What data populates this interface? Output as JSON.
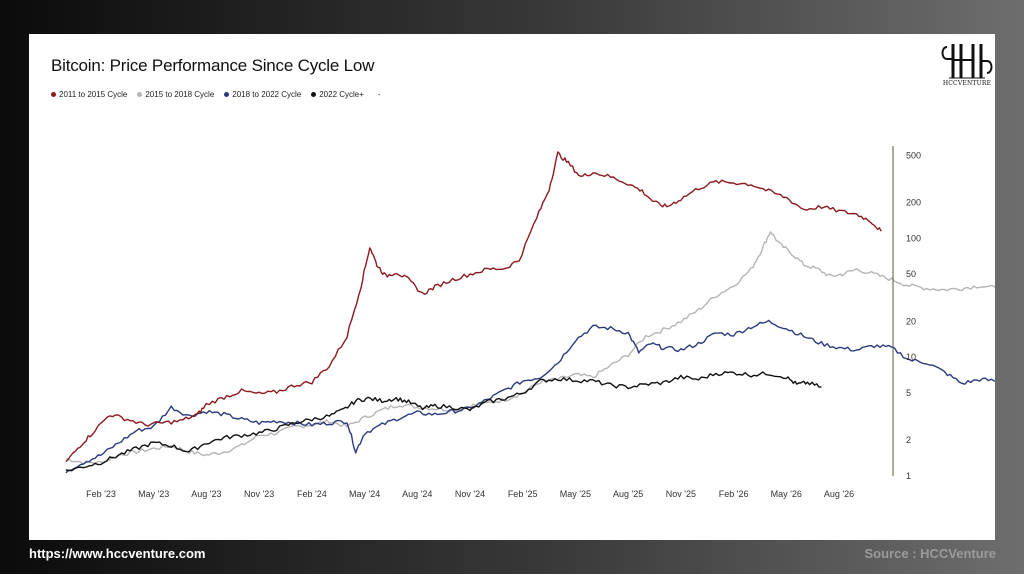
{
  "colors": {
    "c2011": "#8b1a1f",
    "c2015": "#b5b5b5",
    "c2018": "#2b3a7e",
    "c2022": "#111111"
  },
  "footer": {
    "url": "https://www.hccventure.com",
    "source": "Source : HCCVenture"
  },
  "logo": {
    "text": "HCCVENTURE"
  },
  "chart_data": {
    "type": "line",
    "title": "Bitcoin: Price Performance Since Cycle Low",
    "legend_placement": "top-left",
    "y_scale": "log",
    "ylim": [
      1,
      600
    ],
    "y_ticks": [
      1,
      2,
      5,
      10,
      20,
      50,
      100,
      200,
      500
    ],
    "x_ticks": [
      "Feb '23",
      "May '23",
      "Aug '23",
      "Nov '23",
      "Feb '24",
      "May '24",
      "Aug '24",
      "Nov '24",
      "Feb '25",
      "May '25",
      "Aug '25",
      "Nov '25",
      "Feb '26",
      "May '26",
      "Aug '26"
    ],
    "x_range_months": [
      -2.2,
      45.0
    ],
    "series": [
      {
        "name": "2011 to 2015 Cycle",
        "color_key": "c2011",
        "points": [
          [
            -2.0,
            1.3
          ],
          [
            -1.2,
            1.8
          ],
          [
            -0.5,
            2.3
          ],
          [
            0.5,
            3.3
          ],
          [
            1.5,
            3.0
          ],
          [
            2.5,
            2.7
          ],
          [
            3.5,
            2.8
          ],
          [
            4.5,
            2.9
          ],
          [
            5.5,
            3.3
          ],
          [
            6.0,
            4.0
          ],
          [
            7.0,
            4.6
          ],
          [
            8.0,
            5.2
          ],
          [
            9.0,
            4.9
          ],
          [
            10.0,
            5.1
          ],
          [
            11.0,
            5.8
          ],
          [
            12.0,
            6.2
          ],
          [
            13.0,
            8.5
          ],
          [
            14.0,
            15.0
          ],
          [
            14.8,
            40.0
          ],
          [
            15.3,
            85.0
          ],
          [
            15.7,
            60.0
          ],
          [
            16.2,
            48.0
          ],
          [
            16.8,
            52.0
          ],
          [
            17.5,
            45.0
          ],
          [
            18.3,
            34.0
          ],
          [
            19.0,
            39.0
          ],
          [
            20.0,
            45.0
          ],
          [
            21.0,
            50.0
          ],
          [
            22.0,
            55.0
          ],
          [
            23.0,
            56.0
          ],
          [
            23.8,
            66.0
          ],
          [
            24.8,
            150.0
          ],
          [
            25.5,
            260.0
          ],
          [
            26.0,
            520.0
          ],
          [
            26.6,
            430.0
          ],
          [
            27.3,
            330.0
          ],
          [
            28.0,
            360.0
          ],
          [
            29.0,
            330.0
          ],
          [
            30.0,
            290.0
          ],
          [
            30.8,
            250.0
          ],
          [
            31.5,
            200.0
          ],
          [
            32.2,
            185.0
          ],
          [
            33.0,
            215.0
          ],
          [
            34.0,
            265.0
          ],
          [
            35.0,
            300.0
          ],
          [
            36.0,
            295.0
          ],
          [
            37.0,
            285.0
          ],
          [
            38.0,
            250.0
          ],
          [
            39.0,
            220.0
          ],
          [
            40.0,
            175.0
          ],
          [
            41.0,
            185.0
          ],
          [
            42.0,
            170.0
          ],
          [
            43.0,
            160.0
          ],
          [
            43.8,
            140.0
          ],
          [
            44.4,
            115.0
          ]
        ]
      },
      {
        "name": "2015 to 2018 Cycle",
        "color_key": "c2015",
        "points": [
          [
            -2.0,
            1.4
          ],
          [
            -1.0,
            1.3
          ],
          [
            0.0,
            1.3
          ],
          [
            1.0,
            1.5
          ],
          [
            2.0,
            1.6
          ],
          [
            3.0,
            1.7
          ],
          [
            4.0,
            1.8
          ],
          [
            5.0,
            1.6
          ],
          [
            6.0,
            1.5
          ],
          [
            7.0,
            1.6
          ],
          [
            8.0,
            1.8
          ],
          [
            9.0,
            2.2
          ],
          [
            10.0,
            2.3
          ],
          [
            11.0,
            2.6
          ],
          [
            12.0,
            2.7
          ],
          [
            13.0,
            2.9
          ],
          [
            14.0,
            2.6
          ],
          [
            15.0,
            3.1
          ],
          [
            16.0,
            3.6
          ],
          [
            17.0,
            4.0
          ],
          [
            18.0,
            3.8
          ],
          [
            19.0,
            3.7
          ],
          [
            20.0,
            3.6
          ],
          [
            21.0,
            3.9
          ],
          [
            22.0,
            4.1
          ],
          [
            23.0,
            4.4
          ],
          [
            24.0,
            5.0
          ],
          [
            25.0,
            6.2
          ],
          [
            26.0,
            6.5
          ],
          [
            27.0,
            7.1
          ],
          [
            28.0,
            6.8
          ],
          [
            29.0,
            8.5
          ],
          [
            30.0,
            10.5
          ],
          [
            31.0,
            15.0
          ],
          [
            32.0,
            17.0
          ],
          [
            33.0,
            20.0
          ],
          [
            34.0,
            25.0
          ],
          [
            35.0,
            33.0
          ],
          [
            36.0,
            40.0
          ],
          [
            37.0,
            55.0
          ],
          [
            37.6,
            80.0
          ],
          [
            38.1,
            115.0
          ],
          [
            38.6,
            90.0
          ],
          [
            39.3,
            75.0
          ],
          [
            40.0,
            60.0
          ],
          [
            40.8,
            55.0
          ],
          [
            41.5,
            48.0
          ],
          [
            42.2,
            50.0
          ],
          [
            43.0,
            55.0
          ],
          [
            44.0,
            50.0
          ],
          [
            45.0,
            45.0
          ],
          [
            46.0,
            40.0
          ],
          [
            47.0,
            38.0
          ],
          [
            48.0,
            37.0
          ],
          [
            49.0,
            38.0
          ],
          [
            50.0,
            40.0
          ],
          [
            51.0,
            38.0
          ],
          [
            52.0,
            37.0
          ],
          [
            53.0,
            36.0
          ],
          [
            53.8,
            30.0
          ],
          [
            54.4,
            25.0
          ],
          [
            55.0,
            20.0
          ]
        ]
      },
      {
        "name": "2018 to 2022 Cycle",
        "color_key": "c2018",
        "points": [
          [
            -2.0,
            1.1
          ],
          [
            -1.0,
            1.3
          ],
          [
            0.0,
            1.5
          ],
          [
            1.0,
            1.9
          ],
          [
            2.0,
            2.4
          ],
          [
            3.0,
            2.6
          ],
          [
            4.0,
            3.8
          ],
          [
            5.0,
            3.2
          ],
          [
            6.0,
            3.5
          ],
          [
            7.0,
            3.3
          ],
          [
            8.0,
            3.0
          ],
          [
            9.0,
            2.8
          ],
          [
            10.0,
            2.9
          ],
          [
            11.0,
            2.8
          ],
          [
            12.0,
            2.7
          ],
          [
            13.0,
            2.8
          ],
          [
            14.0,
            2.9
          ],
          [
            14.5,
            1.6
          ],
          [
            15.0,
            2.3
          ],
          [
            16.0,
            2.7
          ],
          [
            17.0,
            3.1
          ],
          [
            18.0,
            3.4
          ],
          [
            19.0,
            3.3
          ],
          [
            20.0,
            3.5
          ],
          [
            21.0,
            3.7
          ],
          [
            22.0,
            4.4
          ],
          [
            23.0,
            5.3
          ],
          [
            24.0,
            6.3
          ],
          [
            25.0,
            6.8
          ],
          [
            26.0,
            9.0
          ],
          [
            27.0,
            14.0
          ],
          [
            28.0,
            18.0
          ],
          [
            29.0,
            17.5
          ],
          [
            30.0,
            16.0
          ],
          [
            30.6,
            11.0
          ],
          [
            31.3,
            13.0
          ],
          [
            32.0,
            12.0
          ],
          [
            33.0,
            11.5
          ],
          [
            34.0,
            13.0
          ],
          [
            35.0,
            16.0
          ],
          [
            36.0,
            15.5
          ],
          [
            37.0,
            18.0
          ],
          [
            38.0,
            20.0
          ],
          [
            39.0,
            17.5
          ],
          [
            40.0,
            15.0
          ],
          [
            41.0,
            13.0
          ],
          [
            42.0,
            12.0
          ],
          [
            43.0,
            11.5
          ],
          [
            44.0,
            12.5
          ],
          [
            45.0,
            12.0
          ],
          [
            46.0,
            9.5
          ],
          [
            47.0,
            9.0
          ],
          [
            48.0,
            7.5
          ],
          [
            49.0,
            6.0
          ],
          [
            50.0,
            6.5
          ],
          [
            51.0,
            6.3
          ],
          [
            52.0,
            5.8
          ],
          [
            53.0,
            5.5
          ],
          [
            54.0,
            6.2
          ],
          [
            54.6,
            5.0
          ],
          [
            55.0,
            4.9
          ]
        ]
      },
      {
        "name": "2022 Cycle+",
        "color_key": "c2022",
        "points": [
          [
            -2.0,
            1.1
          ],
          [
            -1.0,
            1.2
          ],
          [
            0.0,
            1.3
          ],
          [
            1.0,
            1.5
          ],
          [
            2.0,
            1.7
          ],
          [
            3.0,
            1.9
          ],
          [
            4.0,
            1.8
          ],
          [
            5.0,
            1.6
          ],
          [
            6.0,
            1.9
          ],
          [
            7.0,
            2.1
          ],
          [
            8.0,
            2.2
          ],
          [
            9.0,
            2.3
          ],
          [
            10.0,
            2.5
          ],
          [
            11.0,
            2.8
          ],
          [
            12.0,
            3.0
          ],
          [
            13.0,
            3.2
          ],
          [
            13.8,
            3.6
          ],
          [
            14.5,
            4.3
          ],
          [
            15.2,
            4.5
          ],
          [
            16.0,
            4.3
          ],
          [
            16.8,
            4.5
          ],
          [
            17.5,
            4.2
          ],
          [
            18.3,
            3.7
          ],
          [
            19.0,
            3.9
          ],
          [
            20.0,
            3.8
          ],
          [
            21.0,
            3.6
          ],
          [
            22.0,
            4.2
          ],
          [
            23.0,
            4.5
          ],
          [
            24.0,
            5.0
          ],
          [
            25.0,
            6.3
          ],
          [
            26.0,
            6.6
          ],
          [
            27.0,
            6.4
          ],
          [
            28.0,
            6.3
          ],
          [
            29.0,
            5.8
          ],
          [
            30.0,
            5.6
          ],
          [
            31.0,
            5.9
          ],
          [
            32.0,
            6.1
          ],
          [
            33.0,
            6.8
          ],
          [
            34.0,
            6.5
          ],
          [
            35.0,
            7.3
          ],
          [
            36.0,
            7.4
          ],
          [
            37.0,
            7.1
          ],
          [
            38.0,
            7.3
          ],
          [
            39.0,
            6.8
          ],
          [
            39.6,
            5.9
          ],
          [
            40.2,
            6.1
          ],
          [
            41.0,
            5.6
          ]
        ]
      }
    ]
  }
}
